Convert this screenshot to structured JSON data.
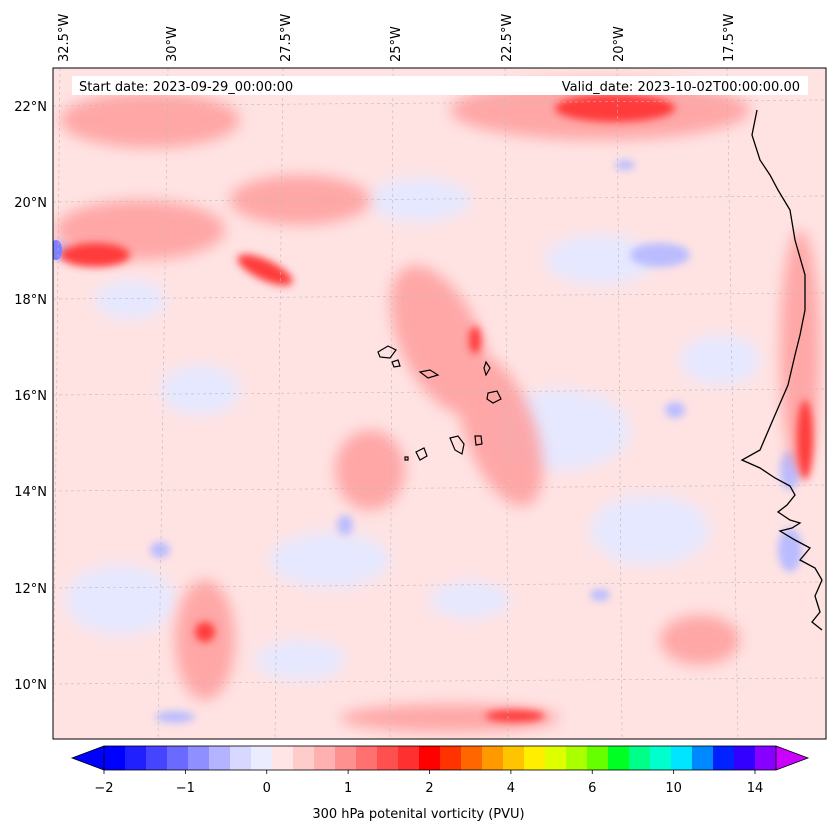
{
  "header": {
    "start_date": "Start date: 2023-09-29_00:00:00",
    "valid_date": "Valid_date: 2023-10-02T00:00:00.00"
  },
  "map": {
    "lon_ticks": [
      "32.5°W",
      "30°W",
      "27.5°W",
      "25°W",
      "22.5°W",
      "20°W",
      "17.5°W"
    ],
    "lat_ticks": [
      "22°N",
      "20°N",
      "18°N",
      "16°N",
      "14°N",
      "12°N",
      "10°N"
    ],
    "extent": {
      "lon_min": -33.0,
      "lon_max": -16.1,
      "lat_min": 8.9,
      "lat_max": 22.8
    }
  },
  "colorbar": {
    "label": "300 hPa potenital vorticity (PVU)",
    "tick_labels": [
      "−2",
      "−1",
      "0",
      "1",
      "2",
      "4",
      "6",
      "10",
      "14"
    ],
    "colors": [
      "#0000ff",
      "#2020ff",
      "#4545ff",
      "#6a6aff",
      "#8f8fff",
      "#b3b3ff",
      "#d7d7ff",
      "#ececff",
      "#ffe5e5",
      "#ffcccc",
      "#ffb0b0",
      "#ff9090",
      "#ff7070",
      "#ff5050",
      "#ff3030",
      "#ff0000",
      "#ff3300",
      "#ff6600",
      "#ff9900",
      "#ffc400",
      "#ffee00",
      "#ddff00",
      "#aaff00",
      "#66ff00",
      "#00ff22",
      "#00ff88",
      "#00ffcc",
      "#00e5ff",
      "#0088ff",
      "#0022ff",
      "#3300ff",
      "#8800ff"
    ],
    "over_color": "#cc00ff",
    "under_color": "#0000ff"
  }
}
